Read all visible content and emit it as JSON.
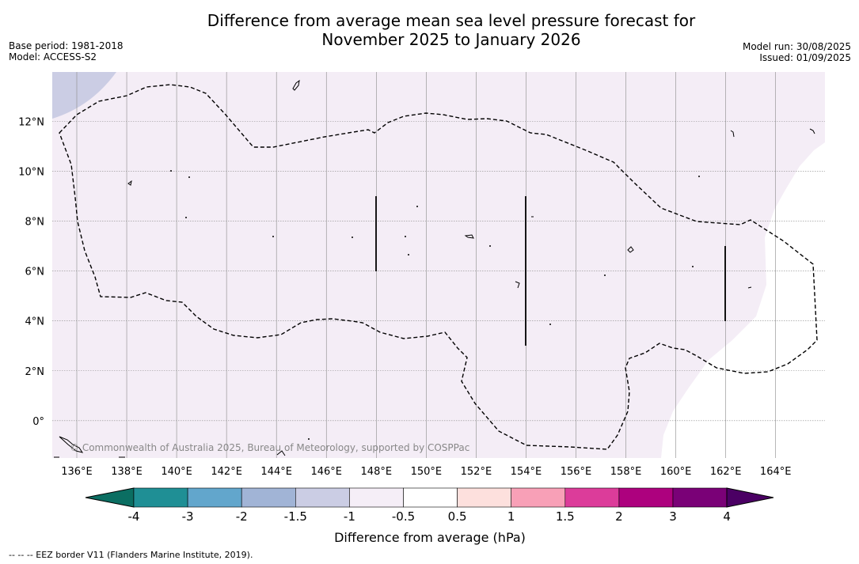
{
  "title_line1": "Difference from average mean sea level pressure forecast for",
  "title_line2": "November 2025 to January 2026",
  "base_period": "Base period: 1981-2018",
  "model": "Model: ACCESS-S2",
  "model_run": "Model run: 30/08/2025",
  "issued": "Issued: 01/09/2025",
  "copyright": "© Commonwealth of Australia 2025, Bureau of Meteorology, supported by COSPPac",
  "footnote": "--  --  -- EEZ border V11 (Flanders Marine Institute, 2019).",
  "lon_labels": [
    "136°E",
    "138°E",
    "140°E",
    "142°E",
    "144°E",
    "146°E",
    "148°E",
    "150°E",
    "152°E",
    "154°E",
    "156°E",
    "158°E",
    "160°E",
    "162°E",
    "164°E"
  ],
  "lat_labels": [
    "12°N",
    "10°N",
    "8°N",
    "6°N",
    "4°N",
    "2°N",
    "0°"
  ],
  "colorbar": {
    "title": "Difference from average (hPa)",
    "tick_labels": [
      "-4",
      "-3",
      "-2",
      "-1.5",
      "-1",
      "-0.5",
      "0.5",
      "1",
      "1.5",
      "2",
      "3",
      "4"
    ],
    "colors": [
      "#1f8f95",
      "#62a6cc",
      "#a1b4d6",
      "#cbcde4",
      "#f5eef7",
      "#ffffff",
      "#fde0dd",
      "#f8a0b7",
      "#dc3c9a",
      "#ad017e",
      "#7a0177"
    ],
    "under_color": "#0b6e62",
    "over_color": "#4b0064"
  },
  "field_colors": {
    "pale_purple": "#f4edf6",
    "lavender": "#cbcde4",
    "white": "#ffffff"
  }
}
